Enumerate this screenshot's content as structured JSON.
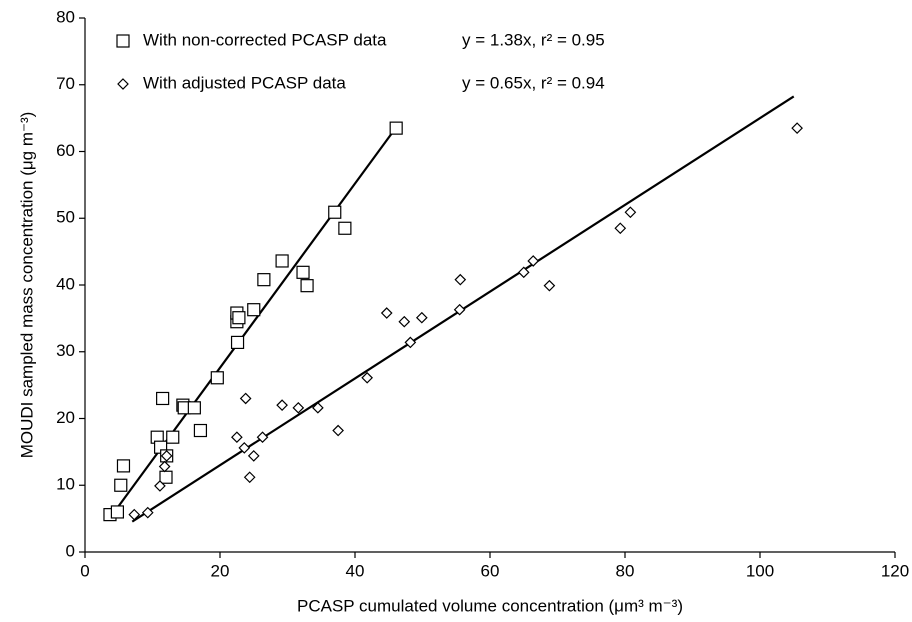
{
  "chart_data": {
    "type": "scatter",
    "x_label": "PCASP cumulated volume concentration (μm³ m⁻³)",
    "y_label": "MOUDI sampled mass concentration (μg m⁻³)",
    "xlim": [
      0,
      120
    ],
    "xticks": [
      0,
      20,
      40,
      60,
      80,
      100,
      120
    ],
    "ylim": [
      0,
      80
    ],
    "yticks": [
      0,
      10,
      20,
      30,
      40,
      50,
      60,
      70,
      80
    ],
    "grid": false,
    "legend": "top-left",
    "series": [
      {
        "name": "With non-corrected PCASP data",
        "marker": "square",
        "color": "#000000",
        "equation": "y = 1.38x, r² = 0.95",
        "fit_slope": 1.38,
        "fit_x": [
          3.7,
          46.1
        ],
        "x": [
          3.7,
          4.8,
          5.3,
          5.7,
          10.7,
          11.2,
          11.5,
          12,
          12.1,
          13,
          14.5,
          14.7,
          16.2,
          17.1,
          19.6,
          22.5,
          22.5,
          22.8,
          22.6,
          25,
          26.5,
          29.2,
          32.3,
          32.9,
          37,
          38.5,
          46.1
        ],
        "values": [
          5.6,
          6.0,
          10,
          12.9,
          17.2,
          15.7,
          23,
          11.2,
          14.4,
          17.2,
          22,
          21.6,
          21.6,
          18.2,
          26.1,
          34.5,
          35.8,
          35.1,
          31.4,
          36.3,
          40.8,
          43.6,
          41.9,
          39.9,
          50.9,
          48.5,
          63.5
        ]
      },
      {
        "name": "With adjusted PCASP data",
        "marker": "diamond",
        "color": "#000000",
        "equation": "y = 0.65x, r² = 0.94",
        "fit_slope": 0.65,
        "fit_x": [
          7,
          105
        ],
        "x": [
          7.3,
          9.3,
          11.1,
          11.8,
          12.1,
          22.5,
          23.6,
          23.8,
          24.4,
          25,
          26.3,
          29.2,
          31.6,
          34.5,
          37.5,
          41.8,
          44.7,
          47.3,
          48.2,
          49.9,
          55.5,
          55.6,
          65,
          66.4,
          68.8,
          79.3,
          80.8,
          105.5
        ],
        "values": [
          5.6,
          5.9,
          9.9,
          12.8,
          14.4,
          17.2,
          15.6,
          23,
          11.2,
          14.4,
          17.2,
          22,
          21.6,
          21.6,
          18.2,
          26.1,
          35.8,
          34.5,
          31.4,
          35.1,
          36.3,
          40.8,
          41.9,
          43.6,
          39.9,
          48.5,
          50.9,
          63.5
        ]
      }
    ]
  }
}
